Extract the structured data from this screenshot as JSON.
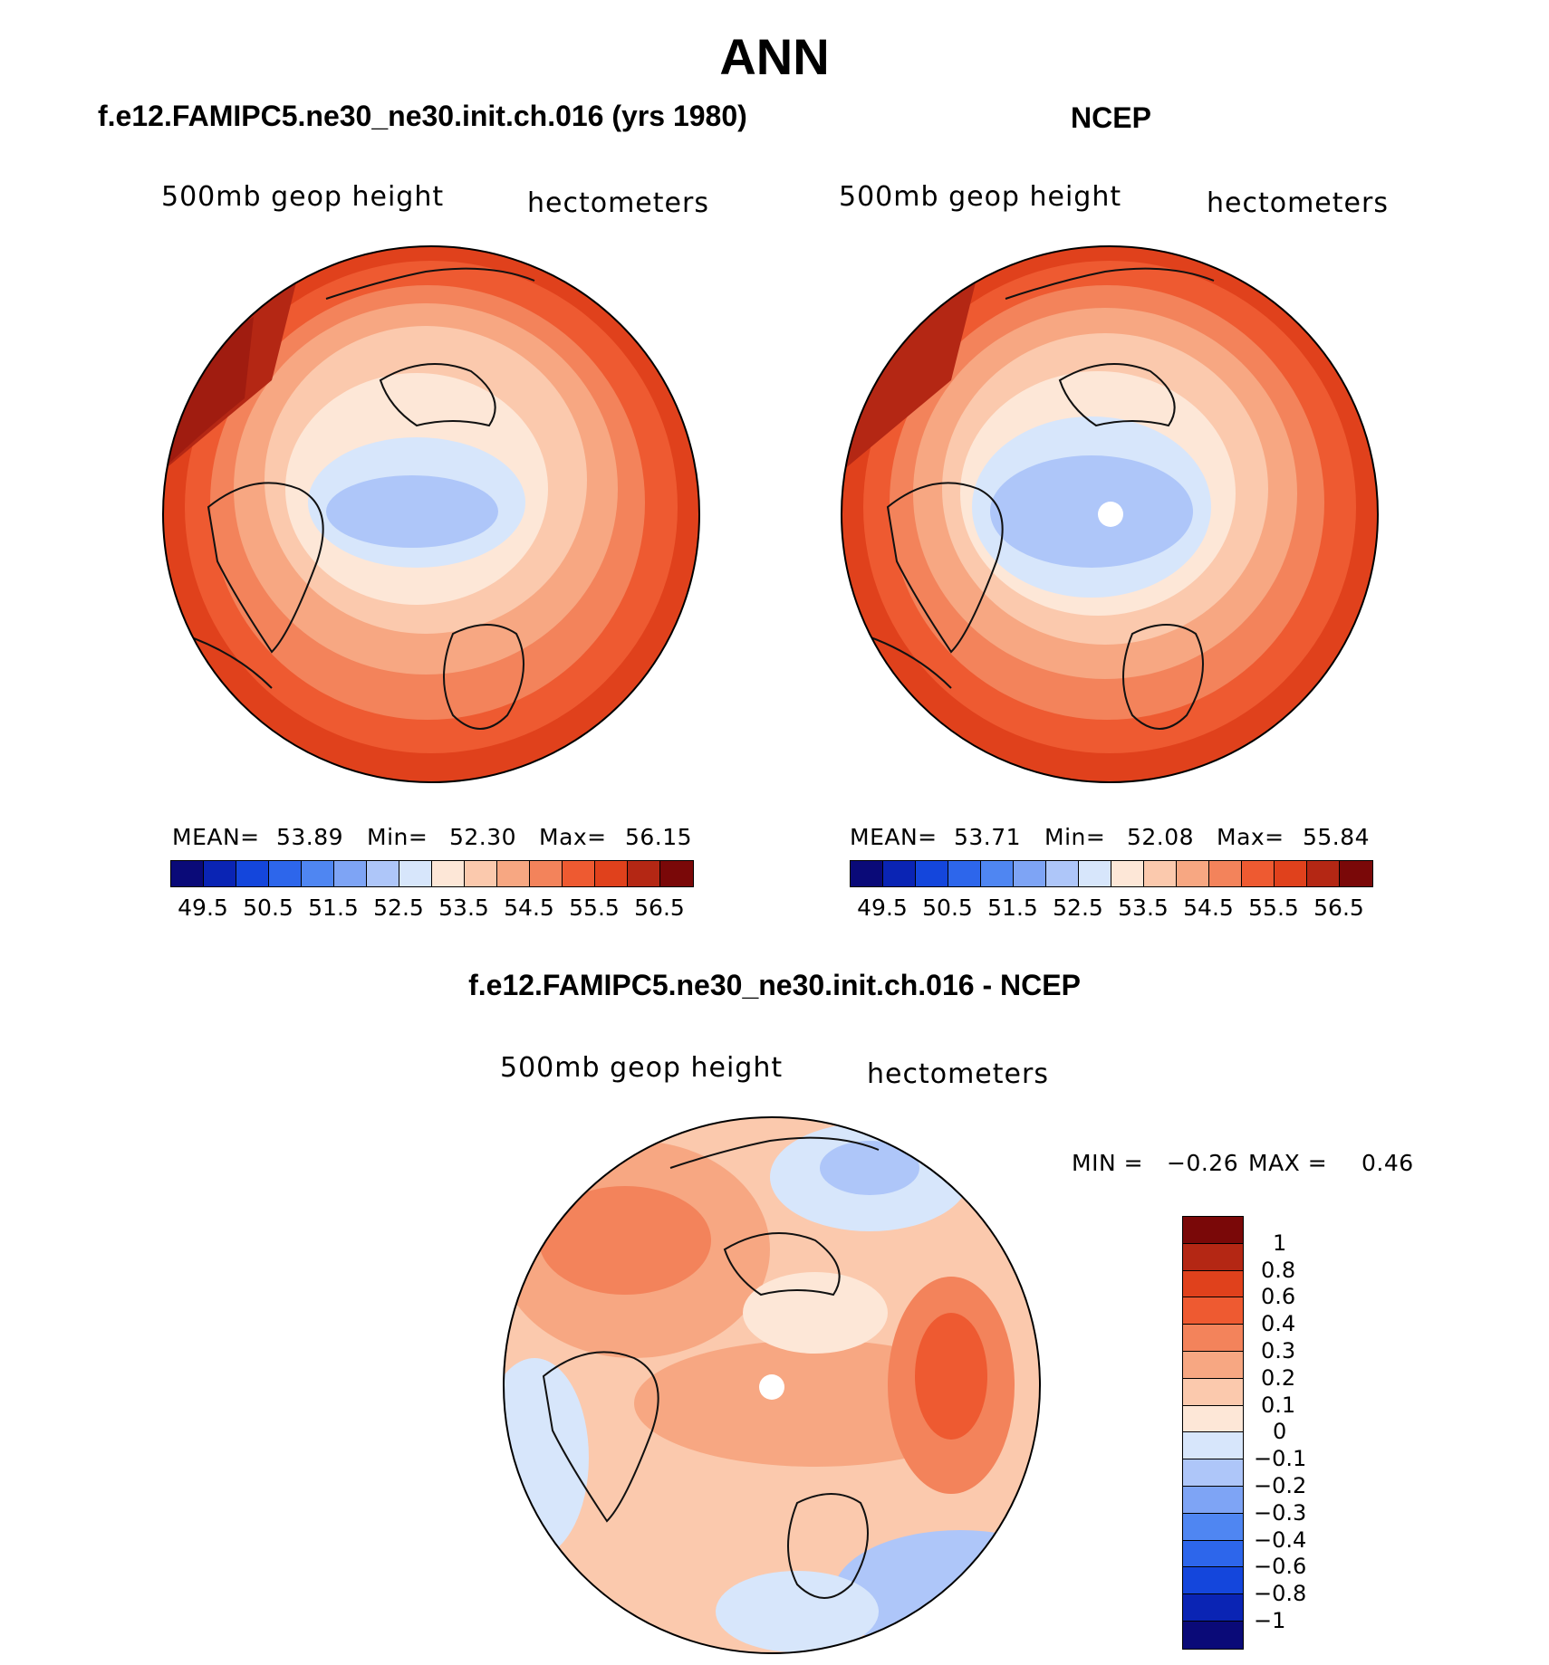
{
  "title": "ANN",
  "panels": {
    "model": {
      "title": "f.e12.FAMIPC5.ne30_ne30.init.ch.016 (yrs 1980)",
      "variable": "500mb  geop  height",
      "units": "hectometers",
      "mean_label": "MEAN=",
      "mean": "53.89",
      "min_label": "Min=",
      "min": "52.30",
      "max_label": "Max=",
      "max": "56.15"
    },
    "obs": {
      "title": "NCEP",
      "variable": "500mb  geop  height",
      "units": "hectometers",
      "mean_label": "MEAN=",
      "mean": "53.71",
      "min_label": "Min=",
      "min": "52.08",
      "max_label": "Max=",
      "max": "55.84"
    },
    "diff": {
      "title": "f.e12.FAMIPC5.ne30_ne30.init.ch.016 - NCEP",
      "variable": "500mb  geop  height",
      "units": "hectometers",
      "min_label": "MIN =",
      "min": "−0.26",
      "max_label": "MAX =",
      "max": "0.46"
    }
  },
  "colorbar_abs": {
    "colors": [
      "#0a0a78",
      "#0a24b4",
      "#1446dc",
      "#2d66eb",
      "#4f86f2",
      "#7ea4f5",
      "#aec6f9",
      "#d7e6fb",
      "#fde7d7",
      "#fbc9ad",
      "#f7a782",
      "#f3835b",
      "#ee5a31",
      "#e0411c",
      "#b42714",
      "#7a0808"
    ],
    "labels": [
      "49.5",
      "50.5",
      "51.5",
      "52.5",
      "53.5",
      "54.5",
      "55.5",
      "56.5"
    ]
  },
  "colorbar_diff": {
    "colors": [
      "#7a0808",
      "#b42714",
      "#e0411c",
      "#ee5a31",
      "#f3835b",
      "#f7a782",
      "#fbc9ad",
      "#fde7d7",
      "#d7e6fb",
      "#aec6f9",
      "#7ea4f5",
      "#4f86f2",
      "#2d66eb",
      "#1446dc",
      "#0a24b4",
      "#0a0a78"
    ],
    "labels": [
      "1",
      "0.8",
      "0.6",
      "0.4",
      "0.3",
      "0.2",
      "0.1",
      "0",
      "−0.1",
      "−0.2",
      "−0.3",
      "−0.4",
      "−0.6",
      "−0.8",
      "−1"
    ]
  }
}
